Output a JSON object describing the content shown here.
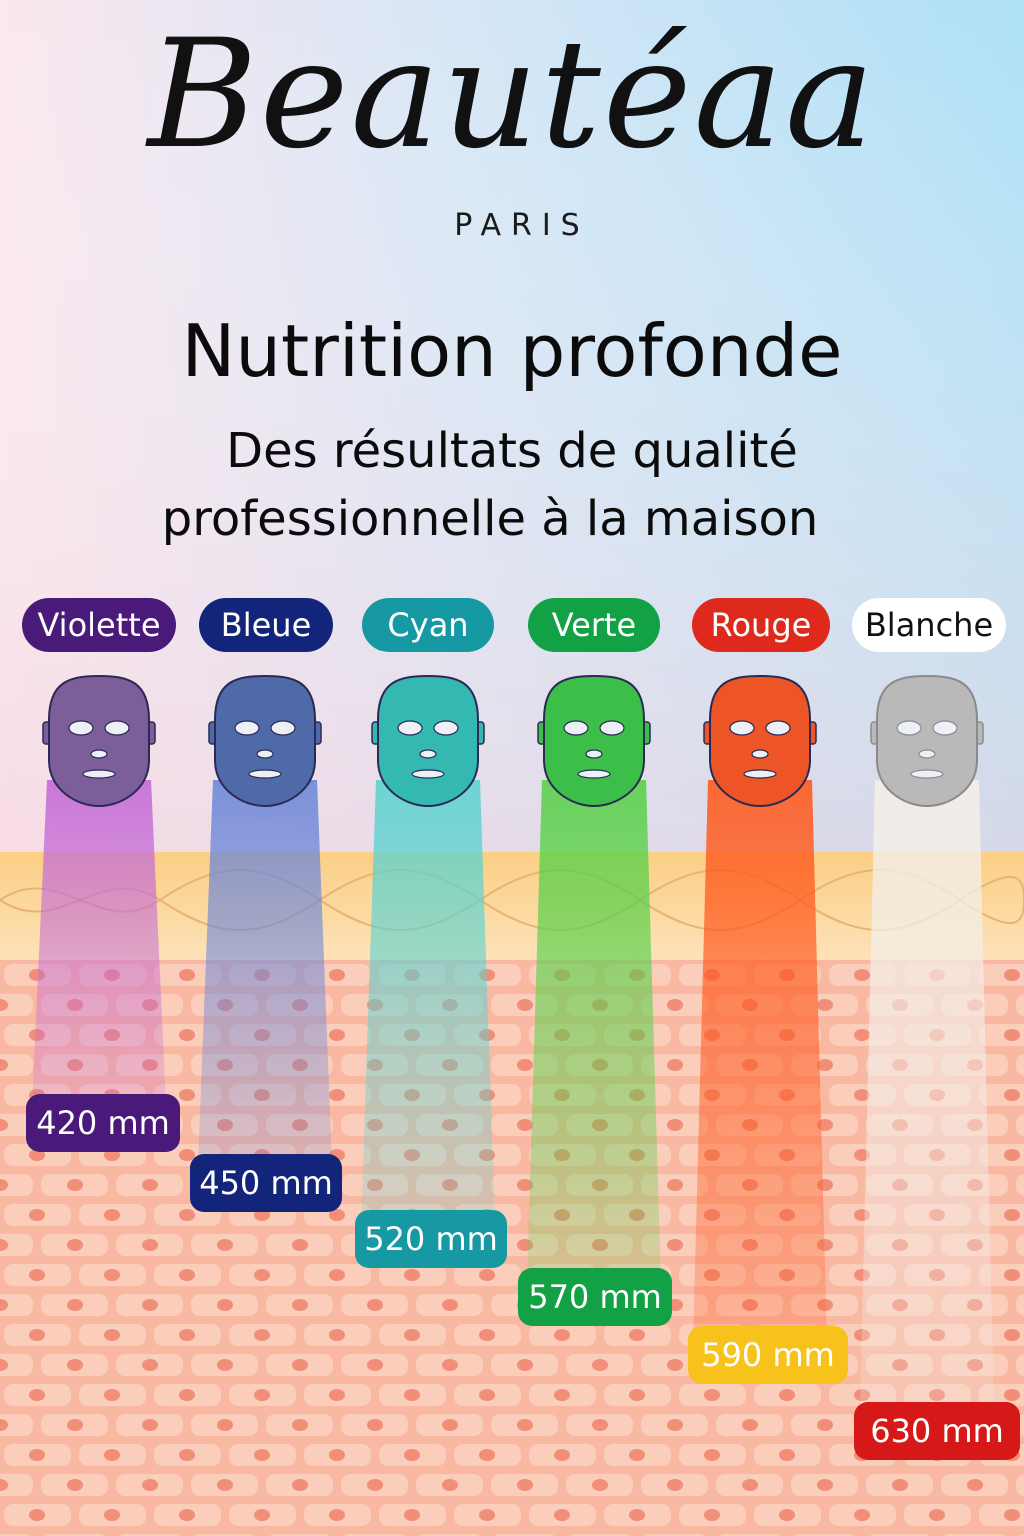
{
  "brand": {
    "name": "Beautéaa",
    "sub": "PARIS"
  },
  "headline": "Nutrition profonde",
  "subline": [
    "Des résultats de qualité",
    "professionnelle à la maison"
  ],
  "lights": [
    {
      "label": "Violette",
      "wavelength": "420 mm",
      "color": "#4a1a7a",
      "beam": "#c46bd6",
      "mask": "#7b5e9a",
      "depth": 0.22
    },
    {
      "label": "Bleue",
      "wavelength": "450 mm",
      "color": "#12257a",
      "beam": "#6f88d8",
      "mask": "#4e6aa8",
      "depth": 0.33
    },
    {
      "label": "Cyan",
      "wavelength": "520 mm",
      "color": "#1799a3",
      "beam": "#5fd3cf",
      "mask": "#33b8b2",
      "depth": 0.44
    },
    {
      "label": "Verte",
      "wavelength": "570 mm",
      "color": "#12a245",
      "beam": "#5ad14a",
      "mask": "#3cbf48",
      "depth": 0.55
    },
    {
      "label": "Rouge",
      "wavelength": "590 mm",
      "color": "#de2a1c",
      "beam": "#ff5a1e",
      "mask": "#ee5526",
      "depth": 0.66,
      "tag_color": "#f6c21b"
    },
    {
      "label": "Blanche",
      "wavelength": "630 mm",
      "color": "#ffffff",
      "beam": "#f3efe9",
      "mask": "#b9b9b9",
      "depth": 0.78,
      "tag_color": "#d71818"
    }
  ]
}
